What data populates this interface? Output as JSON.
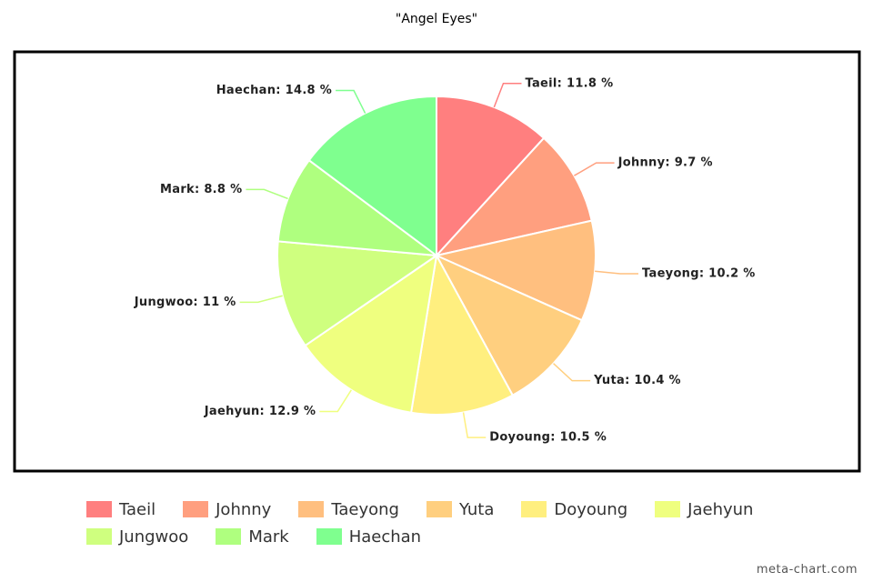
{
  "chart_data": {
    "type": "pie",
    "title": "\"Angel Eyes\"",
    "categories": [
      "Taeil",
      "Johnny",
      "Taeyong",
      "Yuta",
      "Doyoung",
      "Jaehyun",
      "Jungwoo",
      "Mark",
      "Haechan"
    ],
    "values": [
      11.8,
      9.7,
      10.2,
      10.4,
      10.5,
      12.9,
      11,
      8.8,
      14.8
    ],
    "value_labels": [
      "Taeil: 11.8 %",
      "Johnny: 9.7 %",
      "Taeyong: 10.2 %",
      "Yuta: 10.4 %",
      "Doyoung: 10.5 %",
      "Jaehyun: 12.9 %",
      "Jungwoo: 11 %",
      "Mark: 8.8 %",
      "Haechan: 14.8 %"
    ],
    "colors": [
      "#ff7f7f",
      "#ff9f7f",
      "#ffbf7f",
      "#ffcf7f",
      "#ffef7f",
      "#efff7f",
      "#cfff7f",
      "#afff7f",
      "#7fff8f"
    ],
    "watermark": "meta-chart.com"
  }
}
